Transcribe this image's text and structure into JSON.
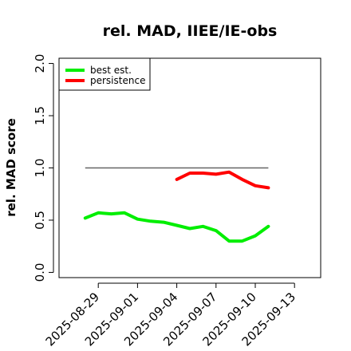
{
  "chart_data": {
    "type": "line",
    "title": "rel. MAD, IIEE/IE-obs",
    "xlabel": "",
    "ylabel": "rel. MAD score",
    "x_axis": {
      "type": "date",
      "range": [
        "2025-08-26",
        "2025-09-15"
      ],
      "ticks": [
        "2025-08-29",
        "2025-09-01",
        "2025-09-04",
        "2025-09-07",
        "2025-09-10",
        "2025-09-13"
      ]
    },
    "y_axis": {
      "range": [
        -0.05,
        2.05
      ],
      "ticks": [
        "0.0",
        "0.5",
        "1.0",
        "1.5",
        "2.0"
      ],
      "tick_values": [
        0.0,
        0.5,
        1.0,
        1.5,
        2.0
      ]
    },
    "grid": false,
    "legend": {
      "position": "top-left"
    },
    "reference_line": {
      "y": 1.0,
      "x_start": "2025-08-28",
      "x_end": "2025-09-11",
      "color": "#666666"
    },
    "series": [
      {
        "name": "best est.",
        "color": "#00ee00",
        "points": [
          [
            "2025-08-28",
            0.52
          ],
          [
            "2025-08-29",
            0.57
          ],
          [
            "2025-08-30",
            0.56
          ],
          [
            "2025-08-31",
            0.57
          ],
          [
            "2025-09-01",
            0.51
          ],
          [
            "2025-09-02",
            0.49
          ],
          [
            "2025-09-03",
            0.48
          ],
          [
            "2025-09-04",
            0.45
          ],
          [
            "2025-09-05",
            0.42
          ],
          [
            "2025-09-06",
            0.44
          ],
          [
            "2025-09-07",
            0.4
          ],
          [
            "2025-09-08",
            0.3
          ],
          [
            "2025-09-09",
            0.3
          ],
          [
            "2025-09-10",
            0.35
          ],
          [
            "2025-09-11",
            0.44
          ]
        ]
      },
      {
        "name": "persistence",
        "color": "#ff0000",
        "points": [
          [
            "2025-09-04",
            0.89
          ],
          [
            "2025-09-05",
            0.95
          ],
          [
            "2025-09-06",
            0.95
          ],
          [
            "2025-09-07",
            0.94
          ],
          [
            "2025-09-08",
            0.96
          ],
          [
            "2025-09-09",
            0.89
          ],
          [
            "2025-09-10",
            0.83
          ],
          [
            "2025-09-11",
            0.81
          ]
        ]
      }
    ]
  }
}
